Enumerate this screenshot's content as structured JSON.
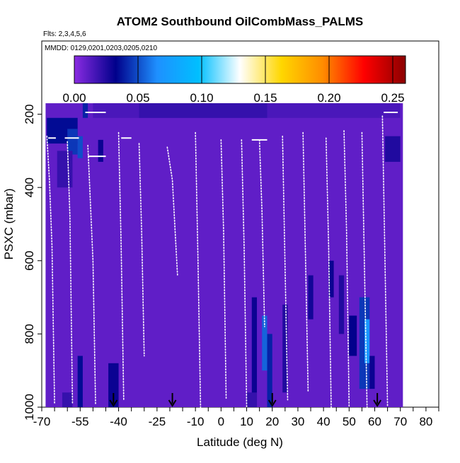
{
  "chart_data": {
    "type": "heatmap",
    "title": "ATOM2 Southbound OilCombMass_PALMS",
    "flights_label": "Flts: 2,3,4,5,6",
    "dates_label": "MMDD: 0129,0201,0203,0205,0210",
    "xlabel": "Latitude (deg N)",
    "ylabel": "PSXC (mbar)",
    "xlim": [
      -70,
      85
    ],
    "ylim": [
      1000,
      0
    ],
    "x_ticks": [
      -70,
      -55,
      -40,
      -25,
      -10,
      0,
      10,
      20,
      30,
      40,
      50,
      60,
      70,
      80
    ],
    "x_tick_labels": [
      "-70",
      "-55",
      "-40",
      "-25",
      "-10",
      "0",
      "10",
      "20",
      "30",
      "40",
      "50",
      "60",
      "70",
      "80"
    ],
    "x_minor_ticks": [
      -65,
      -60,
      -50,
      -45,
      -35,
      -30,
      -20,
      -15,
      -5,
      5,
      15,
      25,
      35,
      45,
      55,
      65,
      75,
      85
    ],
    "y_ticks": [
      200,
      400,
      600,
      800,
      1000
    ],
    "y_tick_labels": [
      "200",
      "400",
      "600",
      "800",
      "1000"
    ],
    "colorbar": {
      "range": [
        0,
        0.26
      ],
      "ticks": [
        0.0,
        0.05,
        0.1,
        0.15,
        0.2,
        0.25
      ],
      "tick_labels": [
        "0.00",
        "0.05",
        "0.10",
        "0.15",
        "0.20",
        "0.25"
      ],
      "colors": [
        "#8a2be2",
        "#00008b",
        "#1e90ff",
        "#00bfff",
        "#ffffff",
        "#ffd700",
        "#ff8c00",
        "#ff0000",
        "#8b0000"
      ]
    },
    "background_value": 0.01,
    "cells": [
      {
        "lat": [
          -50,
          70
        ],
        "p": [
          170,
          210
        ],
        "v": 0.015
      },
      {
        "lat": [
          -32,
          18
        ],
        "p": [
          170,
          210
        ],
        "v": 0.02
      },
      {
        "lat": [
          -54,
          -52
        ],
        "p": [
          170,
          210
        ],
        "v": 0.04
      },
      {
        "lat": [
          -68,
          -56
        ],
        "p": [
          210,
          280
        ],
        "v": 0.035
      },
      {
        "lat": [
          -60,
          -56
        ],
        "p": [
          240,
          310
        ],
        "v": 0.045
      },
      {
        "lat": [
          -56,
          -54
        ],
        "p": [
          260,
          320
        ],
        "v": 0.05
      },
      {
        "lat": [
          -64,
          -58
        ],
        "p": [
          300,
          400
        ],
        "v": 0.02
      },
      {
        "lat": [
          -48,
          -46
        ],
        "p": [
          270,
          330
        ],
        "v": 0.03
      },
      {
        "lat": [
          12,
          14
        ],
        "p": [
          700,
          1000
        ],
        "v": 0.03
      },
      {
        "lat": [
          16,
          18
        ],
        "p": [
          750,
          900
        ],
        "v": 0.055
      },
      {
        "lat": [
          18,
          20
        ],
        "p": [
          800,
          1000
        ],
        "v": 0.04
      },
      {
        "lat": [
          24,
          26
        ],
        "p": [
          720,
          960
        ],
        "v": 0.025
      },
      {
        "lat": [
          34,
          36
        ],
        "p": [
          640,
          760
        ],
        "v": 0.028
      },
      {
        "lat": [
          42,
          44
        ],
        "p": [
          600,
          700
        ],
        "v": 0.03
      },
      {
        "lat": [
          46,
          48
        ],
        "p": [
          640,
          800
        ],
        "v": 0.025
      },
      {
        "lat": [
          50,
          53
        ],
        "p": [
          750,
          860
        ],
        "v": 0.032
      },
      {
        "lat": [
          54,
          58
        ],
        "p": [
          700,
          950
        ],
        "v": 0.045
      },
      {
        "lat": [
          56,
          58
        ],
        "p": [
          760,
          880
        ],
        "v": 0.07
      },
      {
        "lat": [
          58,
          60
        ],
        "p": [
          860,
          950
        ],
        "v": 0.03
      },
      {
        "lat": [
          -56,
          -54
        ],
        "p": [
          860,
          1000
        ],
        "v": 0.035
      },
      {
        "lat": [
          -44,
          -40
        ],
        "p": [
          880,
          1000
        ],
        "v": 0.03
      },
      {
        "lat": [
          64,
          70
        ],
        "p": [
          260,
          330
        ],
        "v": 0.025
      },
      {
        "lat": [
          10,
          14
        ],
        "p": [
          960,
          1000
        ],
        "v": 0.02
      },
      {
        "lat": [
          -62,
          -58
        ],
        "p": [
          960,
          1000
        ],
        "v": 0.02
      }
    ],
    "flight_tracks": [
      {
        "lat": [
          -68,
          -67,
          -66,
          -65
        ],
        "p": [
          260,
          380,
          560,
          990
        ]
      },
      {
        "lat": [
          -60,
          -59,
          -58
        ],
        "p": [
          275,
          480,
          990
        ]
      },
      {
        "lat": [
          -52,
          -50,
          -49
        ],
        "p": [
          285,
          600,
          990
        ]
      },
      {
        "lat": [
          -40,
          -39,
          -38
        ],
        "p": [
          250,
          560,
          980
        ]
      },
      {
        "lat": [
          -32,
          -31,
          -30
        ],
        "p": [
          280,
          520,
          860
        ]
      },
      {
        "lat": [
          -21,
          -19,
          -17
        ],
        "p": [
          290,
          380,
          640
        ]
      },
      {
        "lat": [
          -10,
          -9,
          -8
        ],
        "p": [
          250,
          600,
          1000
        ]
      },
      {
        "lat": [
          0,
          1,
          2
        ],
        "p": [
          270,
          520,
          980
        ]
      },
      {
        "lat": [
          8,
          9,
          10
        ],
        "p": [
          270,
          560,
          1000
        ]
      },
      {
        "lat": [
          15,
          16,
          17
        ],
        "p": [
          270,
          470,
          780
        ]
      },
      {
        "lat": [
          24,
          25,
          26
        ],
        "p": [
          260,
          620,
          980
        ]
      },
      {
        "lat": [
          32,
          33,
          34
        ],
        "p": [
          250,
          600,
          960
        ]
      },
      {
        "lat": [
          41,
          42,
          43
        ],
        "p": [
          265,
          560,
          1000
        ]
      },
      {
        "lat": [
          48,
          49,
          50
        ],
        "p": [
          245,
          520,
          1000
        ]
      },
      {
        "lat": [
          55,
          56,
          57
        ],
        "p": [
          250,
          620,
          1000
        ]
      },
      {
        "lat": [
          63,
          64,
          65
        ],
        "p": [
          205,
          600,
          1000
        ]
      }
    ],
    "level_legs": [
      {
        "lat": [
          -67.5,
          -64.5
        ],
        "p": 265
      },
      {
        "lat": [
          -61,
          -55.5
        ],
        "p": 265
      },
      {
        "lat": [
          -53,
          -45
        ],
        "p": 195
      },
      {
        "lat": [
          -52,
          -45
        ],
        "p": 315
      },
      {
        "lat": [
          -39,
          -35
        ],
        "p": 265
      },
      {
        "lat": [
          12,
          18
        ],
        "p": 270
      },
      {
        "lat": [
          63.5,
          69
        ],
        "p": 195
      }
    ],
    "arrows": [
      -42,
      -19,
      20,
      61
    ]
  }
}
